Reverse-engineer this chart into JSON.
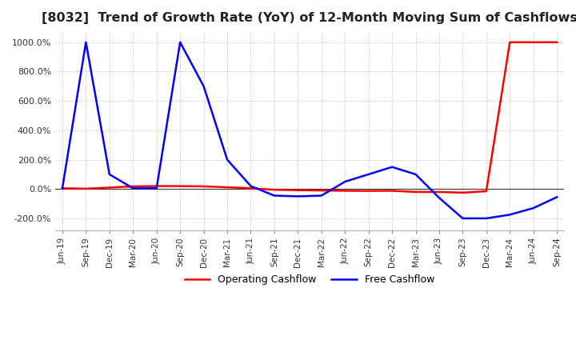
{
  "title": "[8032]  Trend of Growth Rate (YoY) of 12-Month Moving Sum of Cashflows",
  "title_fontsize": 11.5,
  "background_color": "#ffffff",
  "grid_color": "#aaaaaa",
  "grid_style": "dotted",
  "ylim": [
    -280,
    1080
  ],
  "yticks": [
    -200,
    0,
    200,
    400,
    600,
    800,
    1000
  ],
  "ytick_labels": [
    "-200.0%",
    "0.0%",
    "200.0%",
    "400.0%",
    "600.0%",
    "800.0%",
    "1000.0%"
  ],
  "x_labels": [
    "Jun-19",
    "Sep-19",
    "Dec-19",
    "Mar-20",
    "Jun-20",
    "Sep-20",
    "Dec-20",
    "Mar-21",
    "Jun-21",
    "Sep-21",
    "Dec-21",
    "Mar-22",
    "Jun-22",
    "Sep-22",
    "Dec-22",
    "Mar-23",
    "Jun-23",
    "Sep-23",
    "Dec-23",
    "Mar-24",
    "Jun-24",
    "Sep-24"
  ],
  "operating_cashflow": [
    5,
    2,
    10,
    18,
    20,
    20,
    18,
    12,
    5,
    -5,
    -8,
    -10,
    -12,
    -13,
    -12,
    -20,
    -20,
    -25,
    -15,
    1000,
    1000,
    1000
  ],
  "free_cashflow": [
    5,
    1000,
    100,
    5,
    5,
    1000,
    700,
    200,
    20,
    -45,
    -50,
    -45,
    50,
    100,
    150,
    100,
    -60,
    -200,
    -200,
    -175,
    -130,
    -55
  ],
  "operating_color": "#ff0000",
  "free_color": "#0000ff",
  "legend_operating": "Operating Cashflow",
  "legend_free": "Free Cashflow",
  "line_width": 1.8
}
